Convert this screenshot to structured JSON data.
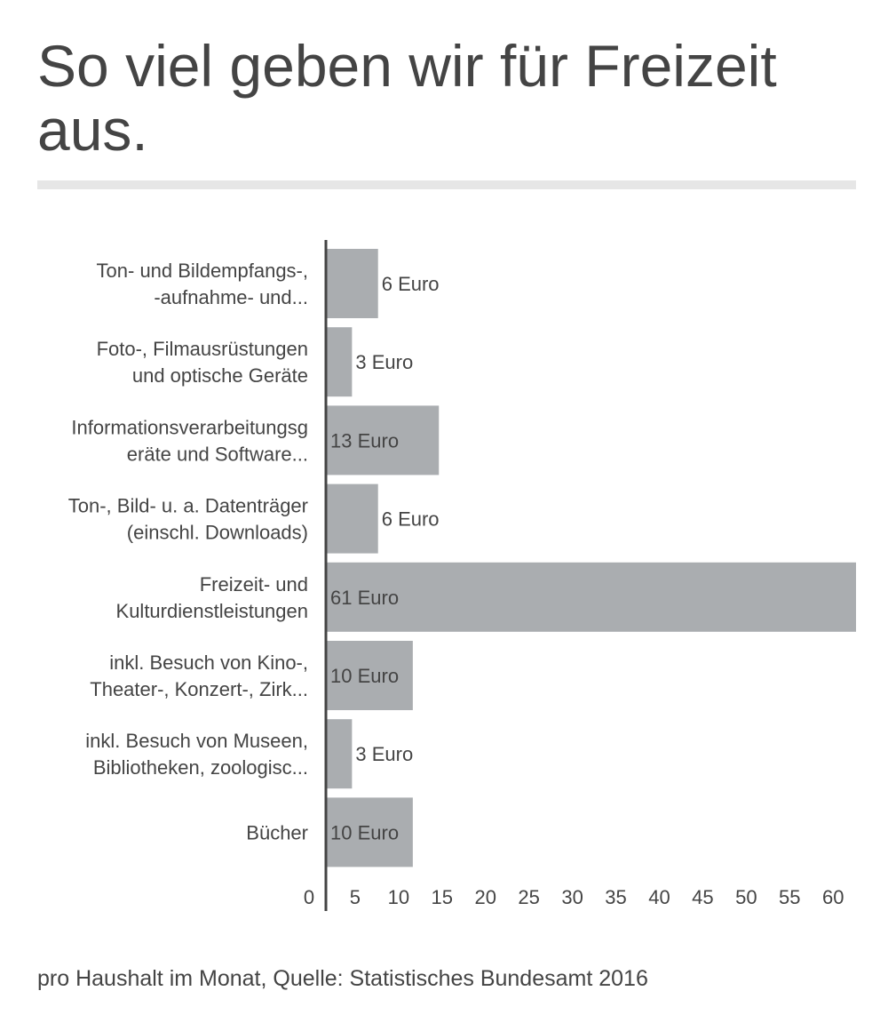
{
  "title": "So viel geben wir für Freizeit aus.",
  "footer": "pro Haushalt im Monat, Quelle: Statistisches Bundesamt 2016",
  "colors": {
    "bar": "#aaadb0",
    "text": "#444444",
    "axis": "#444444",
    "rule": "#e6e6e6"
  },
  "chart_data": {
    "type": "bar",
    "orientation": "horizontal",
    "categories": [
      [
        "Ton- und Bildempfangs-,",
        "-aufnahme- und..."
      ],
      [
        "Foto-, Filmausrüstungen",
        "und optische Geräte"
      ],
      [
        "Informationsverarbeitungsg",
        "eräte und Software..."
      ],
      [
        "Ton-, Bild- u. a. Datenträger",
        "(einschl. Downloads)"
      ],
      [
        "Freizeit- und",
        "Kulturdienstleistungen"
      ],
      [
        "inkl. Besuch von Kino-,",
        "Theater-, Konzert-, Zirk..."
      ],
      [
        "inkl. Besuch von Museen,",
        "Bibliotheken, zoologisc..."
      ],
      [
        "Bücher"
      ]
    ],
    "values": [
      6,
      3,
      13,
      6,
      61,
      10,
      3,
      10
    ],
    "data_labels": [
      "6 Euro",
      "3 Euro",
      "13 Euro",
      "6 Euro",
      "61 Euro",
      "10 Euro",
      "3 Euro",
      "10 Euro"
    ],
    "xlim": [
      0,
      61
    ],
    "x_ticks": [
      0,
      5,
      10,
      15,
      20,
      25,
      30,
      35,
      40,
      45,
      50,
      55,
      60
    ],
    "grid": false,
    "legend": "none"
  }
}
